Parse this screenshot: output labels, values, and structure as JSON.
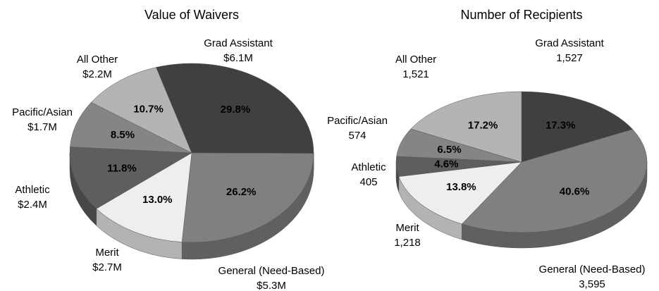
{
  "chart_data": [
    {
      "type": "pie",
      "title": "Value of Waivers",
      "categories": [
        "Grad Assistant",
        "General (Need-Based)",
        "Merit",
        "Athletic",
        "Pacific/Asian",
        "All Other"
      ],
      "values": [
        29.8,
        26.2,
        13.0,
        11.8,
        8.5,
        10.7
      ],
      "value_labels": [
        "29.8%",
        "26.2%",
        "13.0%",
        "11.8%",
        "8.5%",
        "10.7%"
      ],
      "amount_labels": [
        "$6.1M",
        "$5.3M",
        "$2.7M",
        "$2.4M",
        "$1.7M",
        "$2.2M"
      ],
      "colors": [
        "#404040",
        "#808080",
        "#eeeeee",
        "#5e5e5e",
        "#858585",
        "#b4b4b4"
      ]
    },
    {
      "type": "pie",
      "title": "Number of Recipients",
      "categories": [
        "Grad Assistant",
        "General (Need-Based)",
        "Merit",
        "Athletic",
        "Pacific/Asian",
        "All Other"
      ],
      "values": [
        17.3,
        40.6,
        13.8,
        4.6,
        6.5,
        17.2
      ],
      "value_labels": [
        "17.3%",
        "40.6%",
        "13.8%",
        "4.6%",
        "6.5%",
        "17.2%"
      ],
      "amount_labels": [
        "1,527",
        "3,595",
        "1,218",
        "405",
        "574",
        "1,521"
      ],
      "colors": [
        "#404040",
        "#808080",
        "#eeeeee",
        "#5e5e5e",
        "#858585",
        "#b4b4b4"
      ]
    }
  ]
}
